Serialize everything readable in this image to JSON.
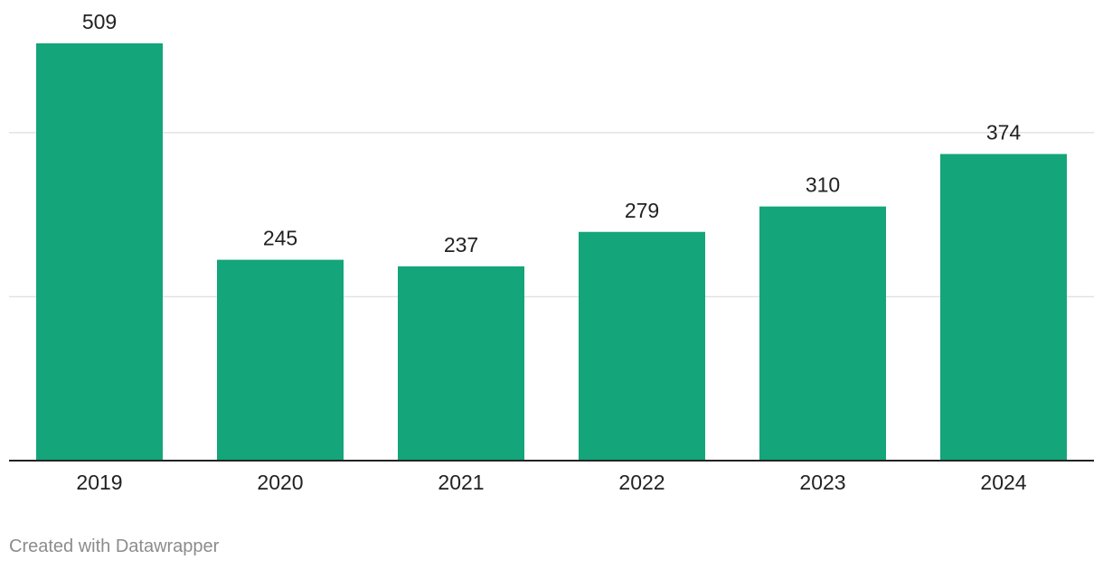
{
  "chart_data": {
    "type": "bar",
    "categories": [
      "2019",
      "2020",
      "2021",
      "2022",
      "2023",
      "2024"
    ],
    "values": [
      509,
      245,
      237,
      279,
      310,
      374
    ],
    "title": "",
    "xlabel": "",
    "ylabel": "",
    "ylim": [
      0,
      560
    ],
    "gridlines": [
      200,
      400
    ],
    "grid": true,
    "legend": "none",
    "bar_color": "#14a57a",
    "show_value_labels": true
  },
  "footer": {
    "credit": "Created with Datawrapper"
  }
}
